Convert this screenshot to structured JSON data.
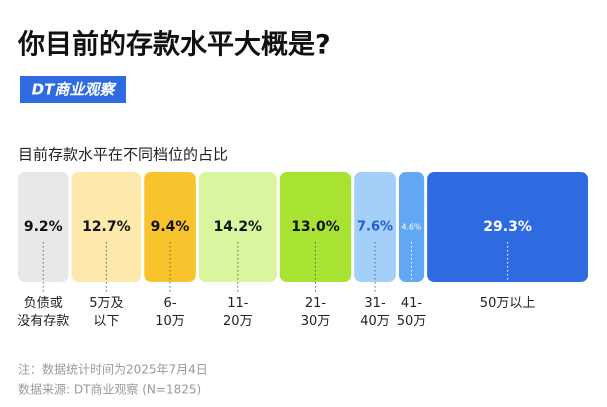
{
  "chart_data": {
    "type": "proportional_bar",
    "title": "你目前的存款水平大概是?",
    "brand": "DT商业观察",
    "subtitle": "目前存款水平在不同档位的占比",
    "categories": [
      "负债或\n没有存款",
      "5万及\n以下",
      "6-\n10万",
      "11-\n20万",
      "21-\n30万",
      "31-\n40万",
      "41-\n50万",
      "50万以上"
    ],
    "values": [
      9.2,
      12.7,
      9.4,
      14.2,
      13.0,
      7.6,
      4.6,
      29.3
    ],
    "value_labels": [
      "9.2%",
      "12.7%",
      "9.4%",
      "14.2%",
      "13.0%",
      "7.6%",
      "4.6%",
      "29.3%"
    ],
    "colors": [
      "#e8e8e8",
      "#fde9ab",
      "#f8c42e",
      "#d9f59e",
      "#a8e232",
      "#a3cff8",
      "#62a7f4",
      "#2f6be0"
    ],
    "value_label_colors": [
      "#111111",
      "#111111",
      "#111111",
      "#111111",
      "#111111",
      "#1f5fd6",
      "#ffffff",
      "#ffffff"
    ],
    "notes": [
      "注：数据统计时间为2025年7月4日",
      "数据来源: DT商业观察 (N=1825)"
    ]
  }
}
